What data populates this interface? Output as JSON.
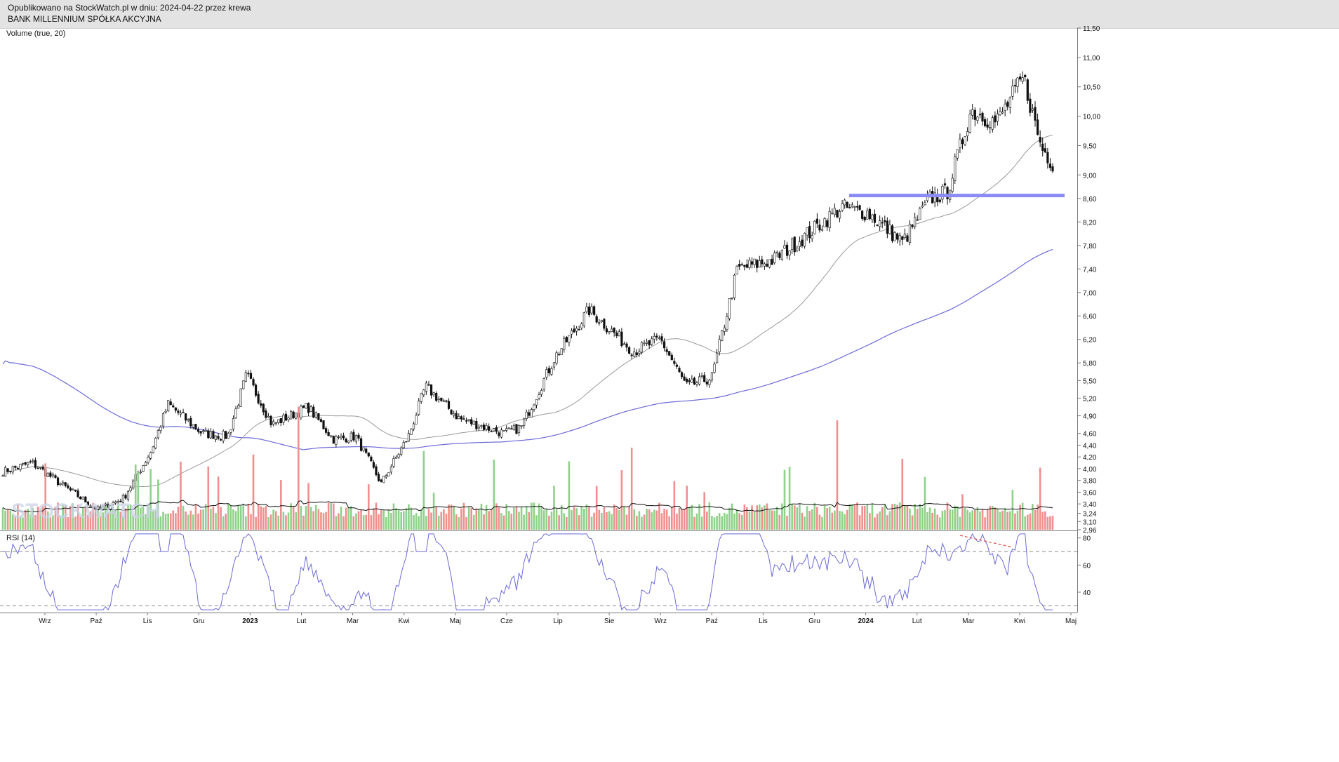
{
  "header": {
    "published": "Opublikowano na StockWatch.pl w dniu: 2024-04-22 przez krewa",
    "company": "BANK MILLENNIUM SPÓŁKA AKCYJNA"
  },
  "watermark": "STOCKWATCH",
  "chart_data": {
    "type": "candlestick",
    "price_axis": {
      "ticks": [
        "11,50",
        "11,00",
        "10,50",
        "10,00",
        "9,50",
        "9,00",
        "8,60",
        "8,20",
        "7,80",
        "7,40",
        "7,00",
        "6,60",
        "6,20",
        "5,80",
        "5,50",
        "5,20",
        "4,90",
        "4,60",
        "4,40",
        "4,20",
        "4,00",
        "3,80",
        "3,60",
        "3,40",
        "3,24",
        "3,10",
        "2,96"
      ],
      "range": [
        2.96,
        11.5
      ]
    },
    "volume": {
      "label": "Volume (true, 20)",
      "up_color": "#8fd18a",
      "down_color": "#ef8f8f",
      "ma_color": "#111111"
    },
    "rsi": {
      "label": "RSI (14)",
      "ticks": [
        "80",
        "60",
        "40"
      ],
      "upper_level": 70,
      "lower_level": 30,
      "color": "#6a6ad8"
    },
    "time_axis": [
      "Wrz",
      "Paź",
      "Lis",
      "Gru",
      "2023",
      "Lut",
      "Mar",
      "Kwi",
      "Maj",
      "Cze",
      "Lip",
      "Sie",
      "Wrz",
      "Paź",
      "Lis",
      "Gru",
      "2024",
      "Lut",
      "Mar",
      "Kwi",
      "Maj"
    ],
    "key_points": [
      {
        "date": "2022-08-15",
        "close": 3.95
      },
      {
        "date": "2022-09-01",
        "close": 4.1
      },
      {
        "date": "2022-09-20",
        "close": 3.7
      },
      {
        "date": "2022-10-10",
        "close": 3.3
      },
      {
        "date": "2022-10-25",
        "close": 3.5
      },
      {
        "date": "2022-11-10",
        "close": 4.3
      },
      {
        "date": "2022-11-20",
        "close": 5.1
      },
      {
        "date": "2022-12-10",
        "close": 4.6
      },
      {
        "date": "2022-12-25",
        "close": 4.55
      },
      {
        "date": "2023-01-05",
        "close": 5.6
      },
      {
        "date": "2023-01-20",
        "close": 4.75
      },
      {
        "date": "2023-02-10",
        "close": 5.05
      },
      {
        "date": "2023-02-25",
        "close": 4.5
      },
      {
        "date": "2023-03-10",
        "close": 4.55
      },
      {
        "date": "2023-03-25",
        "close": 3.75
      },
      {
        "date": "2023-04-10",
        "close": 4.55
      },
      {
        "date": "2023-04-20",
        "close": 5.4
      },
      {
        "date": "2023-05-10",
        "close": 4.85
      },
      {
        "date": "2023-06-05",
        "close": 4.6
      },
      {
        "date": "2023-06-15",
        "close": 4.7
      },
      {
        "date": "2023-07-05",
        "close": 5.9
      },
      {
        "date": "2023-07-25",
        "close": 6.7
      },
      {
        "date": "2023-08-20",
        "close": 6.0
      },
      {
        "date": "2023-09-05",
        "close": 6.2
      },
      {
        "date": "2023-09-20",
        "close": 5.4
      },
      {
        "date": "2023-10-05",
        "close": 5.55
      },
      {
        "date": "2023-10-20",
        "close": 7.4
      },
      {
        "date": "2023-11-10",
        "close": 7.55
      },
      {
        "date": "2023-12-05",
        "close": 8.1
      },
      {
        "date": "2023-12-20",
        "close": 8.45
      },
      {
        "date": "2024-01-05",
        "close": 8.35
      },
      {
        "date": "2024-01-25",
        "close": 7.85
      },
      {
        "date": "2024-02-10",
        "close": 8.6
      },
      {
        "date": "2024-02-20",
        "close": 8.7
      },
      {
        "date": "2024-03-05",
        "close": 10.1
      },
      {
        "date": "2024-03-20",
        "close": 9.9
      },
      {
        "date": "2024-04-05",
        "close": 10.65
      },
      {
        "date": "2024-04-15",
        "close": 9.5
      },
      {
        "date": "2024-04-22",
        "close": 9.2
      }
    ],
    "ma_short": {
      "name": "",
      "color": "#999999"
    },
    "ma_long": {
      "name": "",
      "color": "#6a6ad8"
    },
    "resistance_level": {
      "value": 8.65,
      "color": "#8b8bf5"
    },
    "rsi_divergence_color": "#e04a4a"
  }
}
